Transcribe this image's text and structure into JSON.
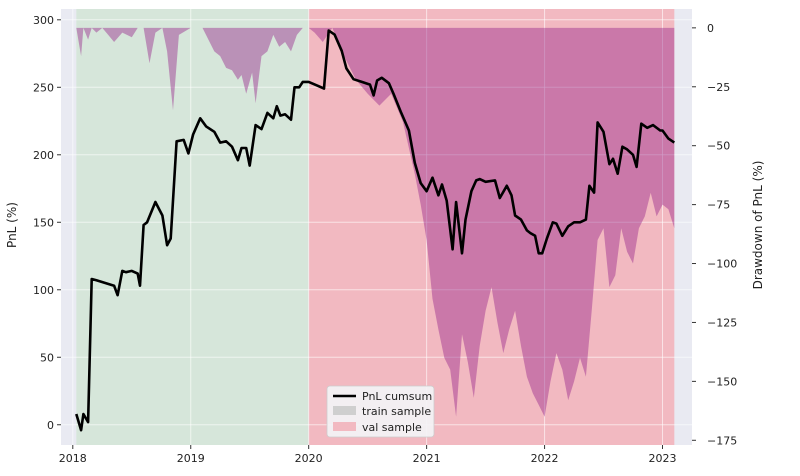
{
  "chart_data": {
    "type": "line",
    "title": "",
    "xlabel": "",
    "ylabel": "PnL (%)",
    "y2label": "Drawdown of PnL (%)",
    "x_ticks": [
      2018,
      2019,
      2020,
      2021,
      2022,
      2023
    ],
    "x_range": [
      2017.9,
      2023.25
    ],
    "y_ticks": [
      0,
      50,
      100,
      150,
      200,
      250,
      300
    ],
    "y_range": [
      -15,
      308
    ],
    "y2_ticks": [
      0,
      -25,
      -50,
      -75,
      -100,
      -125,
      -150,
      -175
    ],
    "y2_range": [
      -177,
      8
    ],
    "grid": true,
    "legend_position": "bottom-center",
    "legend": [
      "PnL cumsum",
      "train sample",
      "val sample"
    ],
    "shaded_regions": [
      {
        "name": "train sample",
        "x": [
          2018.03,
          2020.0
        ],
        "color": "#d6e6da"
      },
      {
        "name": "val sample",
        "x": [
          2020.0,
          2023.1
        ],
        "color": "#f2b9c1"
      }
    ],
    "colors": {
      "line": "#000000",
      "drawdown": "#9a2a8c",
      "axes_bg": "#e9eaf2"
    },
    "series": [
      {
        "name": "PnL cumsum",
        "axis": "left",
        "x": [
          2018.03,
          2018.07,
          2018.09,
          2018.13,
          2018.16,
          2018.2,
          2018.35,
          2018.38,
          2018.42,
          2018.45,
          2018.5,
          2018.55,
          2018.57,
          2018.6,
          2018.63,
          2018.7,
          2018.76,
          2018.8,
          2018.83,
          2018.88,
          2018.94,
          2018.98,
          2019.02,
          2019.08,
          2019.13,
          2019.2,
          2019.25,
          2019.3,
          2019.35,
          2019.4,
          2019.43,
          2019.47,
          2019.5,
          2019.55,
          2019.6,
          2019.65,
          2019.7,
          2019.73,
          2019.76,
          2019.8,
          2019.85,
          2019.88,
          2019.92,
          2019.95,
          2020.0,
          2020.08,
          2020.13,
          2020.17,
          2020.22,
          2020.28,
          2020.32,
          2020.38,
          2020.45,
          2020.52,
          2020.55,
          2020.58,
          2020.62,
          2020.68,
          2020.72,
          2020.78,
          2020.85,
          2020.9,
          2020.95,
          2021.0,
          2021.05,
          2021.1,
          2021.13,
          2021.17,
          2021.22,
          2021.25,
          2021.3,
          2021.33,
          2021.38,
          2021.42,
          2021.45,
          2021.5,
          2021.58,
          2021.62,
          2021.68,
          2021.72,
          2021.75,
          2021.8,
          2021.85,
          2021.88,
          2021.92,
          2021.95,
          2021.98,
          2022.02,
          2022.07,
          2022.1,
          2022.15,
          2022.2,
          2022.25,
          2022.3,
          2022.35,
          2022.38,
          2022.42,
          2022.45,
          2022.5,
          2022.55,
          2022.58,
          2022.62,
          2022.66,
          2022.7,
          2022.75,
          2022.78,
          2022.82,
          2022.87,
          2022.92,
          2022.98,
          2023.0,
          2023.05,
          2023.1
        ],
        "y": [
          8,
          -4,
          8,
          2,
          108,
          107,
          103,
          96,
          114,
          113,
          114,
          112,
          103,
          148,
          150,
          165,
          155,
          133,
          138,
          210,
          211,
          201,
          215,
          227,
          221,
          217,
          209,
          210,
          206,
          196,
          205,
          205,
          192,
          222,
          219,
          231,
          227,
          236,
          229,
          230,
          226,
          250,
          250,
          254,
          254,
          251,
          249,
          292,
          289,
          277,
          264,
          256,
          254,
          252,
          244,
          255,
          257,
          253,
          245,
          232,
          218,
          194,
          179,
          173,
          183,
          170,
          178,
          166,
          130,
          165,
          127,
          152,
          173,
          181,
          182,
          180,
          181,
          168,
          177,
          170,
          155,
          152,
          144,
          142,
          140,
          127,
          127,
          138,
          150,
          149,
          140,
          147,
          150,
          150,
          152,
          177,
          172,
          224,
          217,
          193,
          197,
          186,
          206,
          204,
          200,
          191,
          223,
          220,
          222,
          218,
          218,
          212,
          209
        ]
      },
      {
        "name": "Drawdown",
        "axis": "right",
        "x": [
          2018.03,
          2018.07,
          2018.09,
          2018.13,
          2018.16,
          2018.2,
          2018.25,
          2018.3,
          2018.35,
          2018.42,
          2018.5,
          2018.55,
          2018.6,
          2018.65,
          2018.7,
          2018.76,
          2018.8,
          2018.85,
          2018.9,
          2019.0,
          2019.1,
          2019.15,
          2019.2,
          2019.25,
          2019.3,
          2019.35,
          2019.4,
          2019.43,
          2019.47,
          2019.52,
          2019.55,
          2019.6,
          2019.65,
          2019.7,
          2019.75,
          2019.8,
          2019.85,
          2019.9,
          2019.95,
          2020.0,
          2020.05,
          2020.12,
          2020.2,
          2020.3,
          2020.4,
          2020.5,
          2020.6,
          2020.7,
          2020.8,
          2020.9,
          2020.95,
          2021.0,
          2021.05,
          2021.1,
          2021.15,
          2021.2,
          2021.25,
          2021.3,
          2021.35,
          2021.4,
          2021.45,
          2021.5,
          2021.55,
          2021.6,
          2021.65,
          2021.7,
          2021.75,
          2021.8,
          2021.85,
          2021.9,
          2021.95,
          2022.0,
          2022.05,
          2022.1,
          2022.15,
          2022.2,
          2022.25,
          2022.3,
          2022.35,
          2022.4,
          2022.45,
          2022.5,
          2022.55,
          2022.6,
          2022.65,
          2022.7,
          2022.75,
          2022.8,
          2022.85,
          2022.9,
          2022.95,
          2023.0,
          2023.05,
          2023.1
        ],
        "y": [
          0,
          -12,
          0,
          -5,
          0,
          -2,
          0,
          -3,
          -6,
          -2,
          -4,
          0,
          0,
          -15,
          -2,
          0,
          -10,
          -35,
          -3,
          0,
          0,
          -5,
          -10,
          -12,
          -17,
          -18,
          -22,
          -20,
          -28,
          -19,
          -32,
          -12,
          -10,
          -3,
          -8,
          -6,
          -10,
          -3,
          0,
          0,
          -2,
          -6,
          0,
          -12,
          -22,
          -28,
          -33,
          -28,
          -40,
          -62,
          -75,
          -90,
          -115,
          -128,
          -140,
          -145,
          -165,
          -130,
          -142,
          -157,
          -135,
          -120,
          -110,
          -125,
          -138,
          -128,
          -120,
          -135,
          -148,
          -155,
          -160,
          -165,
          -150,
          -138,
          -145,
          -158,
          -150,
          -140,
          -148,
          -120,
          -90,
          -85,
          -110,
          -105,
          -85,
          -95,
          -100,
          -85,
          -80,
          -70,
          -80,
          -75,
          -77,
          -85
        ]
      }
    ]
  }
}
